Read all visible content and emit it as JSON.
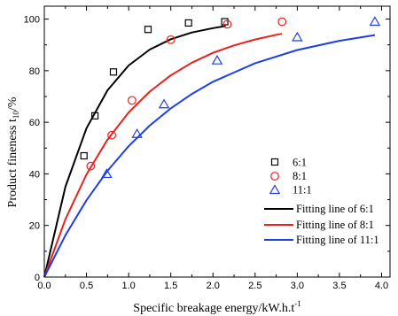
{
  "chart_data": {
    "type": "scatter",
    "title": "",
    "xlabel": "Specific breakage energy/kW.h.t",
    "xlabel_sup": "-1",
    "ylabel": "Product fineness t",
    "ylabel_sub": "10",
    "ylabel_suffix": "/%",
    "xlim": [
      0.0,
      4.1
    ],
    "ylim": [
      0,
      105
    ],
    "x_ticks": [
      "0.0",
      "0.5",
      "1.0",
      "1.5",
      "2.0",
      "2.5",
      "3.0",
      "3.5",
      "4.0"
    ],
    "y_ticks": [
      "0",
      "20",
      "40",
      "60",
      "80",
      "100"
    ],
    "grid": false,
    "legend_position": "right",
    "series": [
      {
        "name": "6:1",
        "marker": "square",
        "color": "#000000",
        "points": [
          [
            0.47,
            47
          ],
          [
            0.6,
            62.5
          ],
          [
            0.82,
            79.5
          ],
          [
            1.23,
            96
          ],
          [
            1.71,
            98.5
          ],
          [
            2.14,
            99
          ]
        ]
      },
      {
        "name": "8:1",
        "marker": "circle",
        "color": "#e8211d",
        "points": [
          [
            0.55,
            43
          ],
          [
            0.8,
            55
          ],
          [
            1.04,
            68.5
          ],
          [
            1.5,
            92
          ],
          [
            2.17,
            98
          ],
          [
            2.82,
            99
          ]
        ]
      },
      {
        "name": "11:1",
        "marker": "triangle",
        "color": "#1f3fe6",
        "points": [
          [
            0.74,
            40
          ],
          [
            1.1,
            55.5
          ],
          [
            1.42,
            67
          ],
          [
            2.05,
            84
          ],
          [
            3.0,
            93
          ],
          [
            3.92,
            99
          ]
        ]
      }
    ],
    "fits": [
      {
        "name": "Fitting line of 6:1",
        "color": "#000000",
        "points": [
          [
            0,
            0
          ],
          [
            0.25,
            35
          ],
          [
            0.5,
            57.7
          ],
          [
            0.75,
            72.4
          ],
          [
            1.0,
            82
          ],
          [
            1.25,
            88.2
          ],
          [
            1.5,
            92.2
          ],
          [
            1.75,
            94.8
          ],
          [
            2.0,
            96.5
          ],
          [
            2.15,
            97.3
          ]
        ]
      },
      {
        "name": "Fitting line of 8:1",
        "color": "#e8211d",
        "points": [
          [
            0,
            0
          ],
          [
            0.25,
            22.4
          ],
          [
            0.5,
            39.8
          ],
          [
            0.75,
            53.3
          ],
          [
            1.0,
            63.8
          ],
          [
            1.25,
            71.9
          ],
          [
            1.5,
            78.2
          ],
          [
            1.75,
            83.1
          ],
          [
            2.0,
            86.9
          ],
          [
            2.25,
            89.8
          ],
          [
            2.5,
            92.1
          ],
          [
            2.75,
            93.9
          ],
          [
            2.82,
            94.3
          ]
        ]
      },
      {
        "name": "Fitting line of 11:1",
        "color": "#1f3fe6",
        "points": [
          [
            0,
            0
          ],
          [
            0.25,
            16.2
          ],
          [
            0.5,
            29.8
          ],
          [
            0.75,
            41.2
          ],
          [
            1.0,
            50.7
          ],
          [
            1.25,
            58.7
          ],
          [
            1.5,
            65.4
          ],
          [
            1.75,
            71
          ],
          [
            2.0,
            75.7
          ],
          [
            2.5,
            82.9
          ],
          [
            3.0,
            88
          ],
          [
            3.5,
            91.6
          ],
          [
            3.92,
            93.8
          ]
        ]
      }
    ]
  }
}
